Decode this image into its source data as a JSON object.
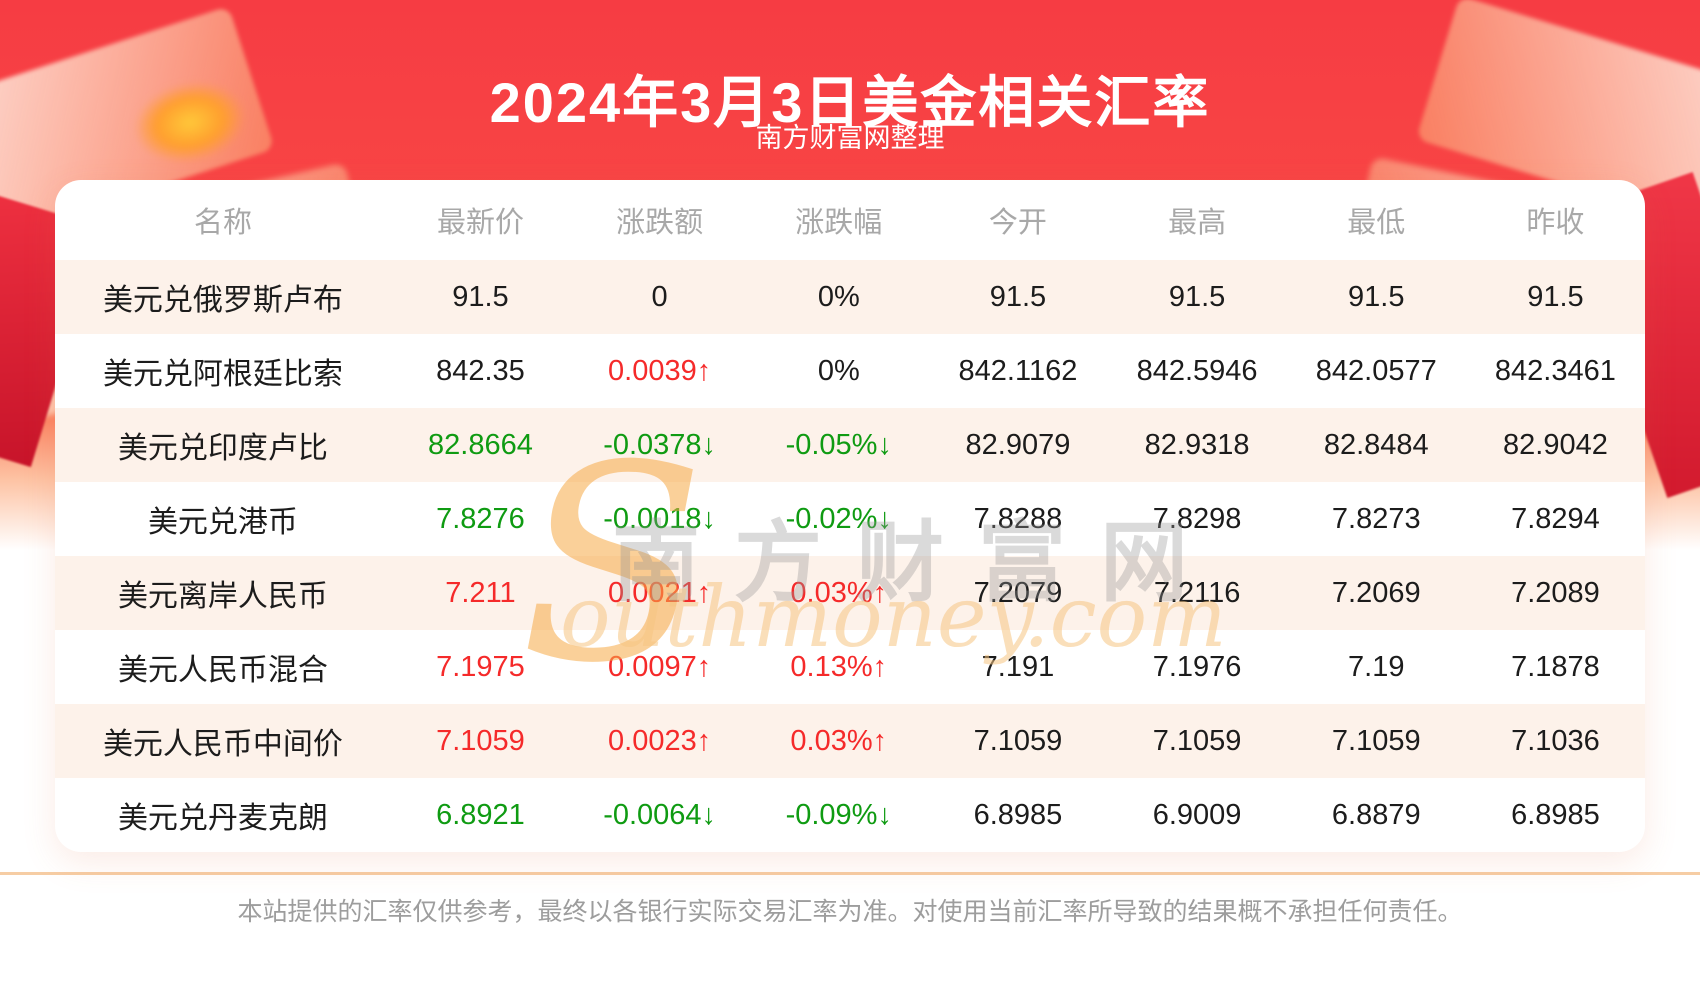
{
  "header": {
    "title": "2024年3月3日美金相关汇率",
    "subtitle": "南方财富网整理"
  },
  "table": {
    "columns": [
      "名称",
      "最新价",
      "涨跌额",
      "涨跌幅",
      "今开",
      "最高",
      "最低",
      "昨收"
    ],
    "rows": [
      {
        "name": "美元兑俄罗斯卢布",
        "latest": "91.5",
        "latest_color": "flat",
        "change": "0",
        "change_color": "flat",
        "pct": "0%",
        "pct_color": "flat",
        "open": "91.5",
        "high": "91.5",
        "low": "91.5",
        "prev": "91.5"
      },
      {
        "name": "美元兑阿根廷比索",
        "latest": "842.35",
        "latest_color": "flat",
        "change": "0.0039↑",
        "change_color": "up",
        "pct": "0%",
        "pct_color": "flat",
        "open": "842.1162",
        "high": "842.5946",
        "low": "842.0577",
        "prev": "842.3461"
      },
      {
        "name": "美元兑印度卢比",
        "latest": "82.8664",
        "latest_color": "down",
        "change": "-0.0378↓",
        "change_color": "down",
        "pct": "-0.05%↓",
        "pct_color": "down",
        "open": "82.9079",
        "high": "82.9318",
        "low": "82.8484",
        "prev": "82.9042"
      },
      {
        "name": "美元兑港币",
        "latest": "7.8276",
        "latest_color": "down",
        "change": "-0.0018↓",
        "change_color": "down",
        "pct": "-0.02%↓",
        "pct_color": "down",
        "open": "7.8288",
        "high": "7.8298",
        "low": "7.8273",
        "prev": "7.8294"
      },
      {
        "name": "美元离岸人民币",
        "latest": "7.211",
        "latest_color": "up",
        "change": "0.0021↑",
        "change_color": "up",
        "pct": "0.03%↑",
        "pct_color": "up",
        "open": "7.2079",
        "high": "7.2116",
        "low": "7.2069",
        "prev": "7.2089"
      },
      {
        "name": "美元人民币混合",
        "latest": "7.1975",
        "latest_color": "up",
        "change": "0.0097↑",
        "change_color": "up",
        "pct": "0.13%↑",
        "pct_color": "up",
        "open": "7.191",
        "high": "7.1976",
        "low": "7.19",
        "prev": "7.1878"
      },
      {
        "name": "美元人民币中间价",
        "latest": "7.1059",
        "latest_color": "up",
        "change": "0.0023↑",
        "change_color": "up",
        "pct": "0.03%↑",
        "pct_color": "up",
        "open": "7.1059",
        "high": "7.1059",
        "low": "7.1059",
        "prev": "7.1036"
      },
      {
        "name": "美元兑丹麦克朗",
        "latest": "6.8921",
        "latest_color": "down",
        "change": "-0.0064↓",
        "change_color": "down",
        "pct": "-0.09%↓",
        "pct_color": "down",
        "open": "6.8985",
        "high": "6.9009",
        "low": "6.8879",
        "prev": "6.8985"
      }
    ]
  },
  "colors": {
    "up": "#f52a2a",
    "down": "#0f9b12",
    "flat": "#1c1c1c",
    "accent_red": "#f63c43",
    "stripe": "#fdf2ea",
    "divider": "#f6cda4"
  },
  "watermark": {
    "s_glyph": "S",
    "cn": "南方财富网",
    "en": "outhmoney.com"
  },
  "footer": {
    "disclaimer": "本站提供的汇率仅供参考，最终以各银行实际交易汇率为准。对使用当前汇率所导致的结果概不承担任何责任。"
  }
}
